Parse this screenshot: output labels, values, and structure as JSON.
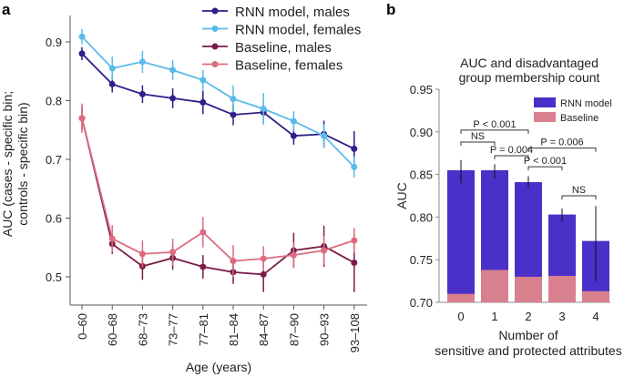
{
  "chart_data": [
    {
      "type": "line",
      "panel_label": "a",
      "xlabel": "Age (years)",
      "ylabel_line1": "AUC (cases - specific bin;",
      "ylabel_line2": "controls - specific bin)",
      "categories": [
        "0–60",
        "60–68",
        "68–73",
        "73–77",
        "77–81",
        "81–84",
        "84–87",
        "87–90",
        "90–93",
        "93–108"
      ],
      "yticks": [
        "0.5",
        "0.6",
        "0.7",
        "0.8",
        "0.9"
      ],
      "ylim": [
        0.47,
        0.95
      ],
      "legend_position": "top-right",
      "series": [
        {
          "name": "RNN model, males",
          "color": "#2e1f8a",
          "values": [
            0.88,
            0.828,
            0.811,
            0.804,
            0.797,
            0.776,
            0.78,
            0.74,
            0.743,
            0.718
          ],
          "err": [
            0.011,
            0.014,
            0.015,
            0.017,
            0.02,
            0.018,
            0.018,
            0.015,
            0.023,
            0.03
          ]
        },
        {
          "name": "RNN model, females",
          "color": "#5bbbe8",
          "values": [
            0.909,
            0.855,
            0.866,
            0.852,
            0.835,
            0.803,
            0.786,
            0.765,
            0.74,
            0.687
          ],
          "err": [
            0.013,
            0.02,
            0.019,
            0.017,
            0.017,
            0.023,
            0.027,
            0.017,
            0.02,
            0.018
          ]
        },
        {
          "name": "Baseline, males",
          "color": "#7a1d4a",
          "values": [
            0.77,
            0.556,
            0.518,
            0.532,
            0.517,
            0.508,
            0.504,
            0.545,
            0.552,
            0.524
          ],
          "err": [
            0.02,
            0.017,
            0.023,
            0.02,
            0.02,
            0.02,
            0.03,
            0.03,
            0.035,
            0.05
          ]
        },
        {
          "name": "Baseline, females",
          "color": "#dd6b7f",
          "values": [
            0.77,
            0.565,
            0.539,
            0.542,
            0.576,
            0.527,
            0.531,
            0.537,
            0.545,
            0.562
          ],
          "err": [
            0.025,
            0.023,
            0.023,
            0.023,
            0.026,
            0.027,
            0.021,
            0.022,
            0.025,
            0.021
          ]
        }
      ]
    },
    {
      "type": "bar",
      "panel_label": "b",
      "title_line1": "AUC and disadvantaged",
      "title_line2": "group membership count",
      "xlabel_line1": "Number of",
      "xlabel_line2": "sensitive and protected attributes",
      "ylabel": "AUC",
      "categories": [
        "0",
        "1",
        "2",
        "3",
        "4"
      ],
      "yticks": [
        "0.70",
        "0.75",
        "0.80",
        "0.85",
        "0.90",
        "0.95"
      ],
      "ylim": [
        0.7,
        0.95
      ],
      "legend_position": "top-right",
      "series": [
        {
          "name": "RNN model",
          "color": "#4a30c8",
          "values": [
            0.855,
            0.855,
            0.841,
            0.803,
            0.772
          ],
          "err_low": [
            0.84,
            0.845,
            0.835,
            0.795,
            0.725
          ],
          "err_high": [
            0.867,
            0.862,
            0.848,
            0.81,
            0.813
          ]
        },
        {
          "name": "Baseline",
          "color": "#d9808f",
          "values": [
            0.71,
            0.738,
            0.73,
            0.731,
            0.713
          ]
        }
      ],
      "annotations": [
        {
          "text": "P < 0.001",
          "from": 0,
          "to": 2,
          "y": 0.902
        },
        {
          "text": "NS",
          "from": 0,
          "to": 1,
          "y": 0.888
        },
        {
          "text": "P = 0.004",
          "from": 1,
          "to": 2,
          "y": 0.872
        },
        {
          "text": "P = 0.006",
          "from": 2,
          "to": 4,
          "y": 0.881
        },
        {
          "text": "P < 0.001",
          "from": 2,
          "to": 3,
          "y": 0.859
        },
        {
          "text": "NS",
          "from": 3,
          "to": 4,
          "y": 0.825
        }
      ]
    }
  ]
}
